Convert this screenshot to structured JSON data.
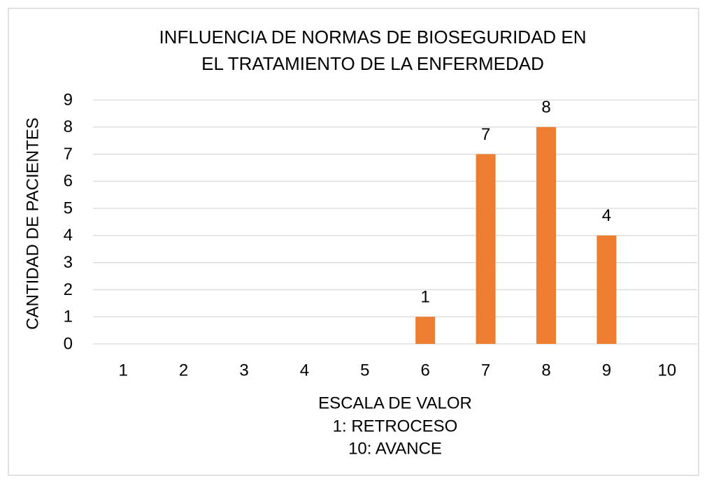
{
  "chart_data": {
    "type": "bar",
    "title": [
      "INFLUENCIA DE NORMAS DE BIOSEGURIDAD EN",
      "EL TRATAMIENTO DE LA ENFERMEDAD"
    ],
    "x_label": [
      "ESCALA DE VALOR",
      "1: RETROCESO",
      "10: AVANCE"
    ],
    "y_label": "CANTIDAD DE PACIENTES",
    "categories": [
      "1",
      "2",
      "3",
      "4",
      "5",
      "6",
      "7",
      "8",
      "9",
      "10"
    ],
    "values": [
      0,
      0,
      0,
      0,
      0,
      1,
      7,
      8,
      4,
      0
    ],
    "color": "#ed7d31",
    "ylim": [
      0,
      9
    ],
    "yticks": [
      0,
      1,
      2,
      3,
      4,
      5,
      6,
      7,
      8,
      9
    ],
    "grid": true
  }
}
